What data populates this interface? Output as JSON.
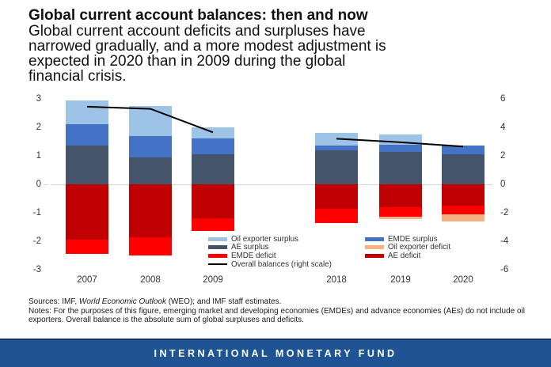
{
  "header": {
    "title": "Global current account balances: then and now",
    "subtitle": "Global current account deficits and surpluses have narrowed gradually, and a more modest adjustment is expected in 2020 than in 2009 during the global financial crisis.",
    "subtitle_lines": [
      "Global current account deficits and surpluses have",
      "narrowed gradually, and a more modest adjustment is",
      "expected in 2020 than in 2009 during the global",
      "financial crisis."
    ]
  },
  "chart_data": {
    "type": "bar",
    "stacked": true,
    "categories": [
      "2007",
      "2008",
      "2009",
      "2018",
      "2019",
      "2020"
    ],
    "left_axis": {
      "min": -3,
      "max": 3,
      "step": 1
    },
    "right_axis": {
      "min": -6,
      "max": 6,
      "step": 2
    },
    "grid": "zero-line-only",
    "series": [
      {
        "name": "Oil exporter surplus",
        "color": "#9DC3E6",
        "values": [
          0.85,
          1.05,
          0.4,
          0.45,
          0.35,
          0
        ]
      },
      {
        "name": "EMDE surplus",
        "color": "#4472C4",
        "values": [
          0.75,
          0.75,
          0.55,
          0.15,
          0.25,
          0.3
        ]
      },
      {
        "name": "AE surplus",
        "color": "#44546A",
        "values": [
          1.35,
          0.95,
          1.05,
          1.2,
          1.15,
          1.05
        ]
      },
      {
        "name": "AE deficit",
        "color": "#C00000",
        "values": [
          -1.95,
          -1.85,
          -1.2,
          -0.85,
          -0.8,
          -0.75
        ]
      },
      {
        "name": "EMDE deficit",
        "color": "#FF0000",
        "values": [
          -0.5,
          -0.65,
          -0.45,
          -0.5,
          -0.35,
          -0.3
        ]
      },
      {
        "name": "Oil exporter deficit",
        "color": "#F4B183",
        "values": [
          0,
          0,
          0,
          0,
          -0.07,
          -0.25
        ]
      }
    ],
    "stack_order_positive": [
      "AE surplus",
      "EMDE surplus",
      "Oil exporter surplus"
    ],
    "stack_order_negative": [
      "AE deficit",
      "EMDE deficit",
      "Oil exporter deficit"
    ],
    "line_series": {
      "name": "Overall balances (right scale)",
      "color": "#000000",
      "scale": "right",
      "segments": [
        {
          "categories": [
            "2007",
            "2008",
            "2009"
          ],
          "values": [
            5.45,
            5.3,
            3.65
          ]
        },
        {
          "categories": [
            "2018",
            "2019",
            "2020"
          ],
          "values": [
            3.2,
            2.95,
            2.65
          ]
        }
      ]
    },
    "legend": {
      "left_column": [
        {
          "label": "Oil exporter surplus",
          "color": "#9DC3E6",
          "type": "swatch"
        },
        {
          "label": "AE surplus",
          "color": "#44546A",
          "type": "swatch"
        },
        {
          "label": "EMDE deficit",
          "color": "#FF0000",
          "type": "swatch"
        },
        {
          "label": "Overall balances (right scale)",
          "color": "#000000",
          "type": "line"
        }
      ],
      "right_column": [
        {
          "label": "EMDE surplus",
          "color": "#4472C4",
          "type": "swatch"
        },
        {
          "label": "Oil exporter deficit",
          "color": "#F4B183",
          "type": "swatch"
        },
        {
          "label": "AE deficit",
          "color": "#C00000",
          "type": "swatch"
        }
      ]
    }
  },
  "notes": {
    "sources_prefix": "Sources: IMF, ",
    "sources_italic": "World Economic Outlook",
    "sources_suffix": " (WEO); and IMF staff estimates.",
    "notes_text": "Notes: For the purposes of this figure, emerging market and developing economies (EMDEs) and advance economies (AEs) do not include oil exporters. Overall balance is the absolute sum of global surpluses and deficits."
  },
  "footer": {
    "label": "INTERNATIONAL MONETARY FUND",
    "background": "#1F5494"
  }
}
